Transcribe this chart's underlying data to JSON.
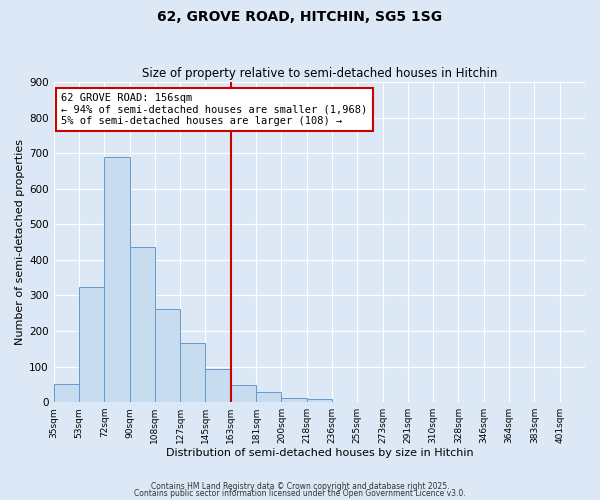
{
  "title": "62, GROVE ROAD, HITCHIN, SG5 1SG",
  "subtitle": "Size of property relative to semi-detached houses in Hitchin",
  "xlabel": "Distribution of semi-detached houses by size in Hitchin",
  "ylabel": "Number of semi-detached properties",
  "bin_labels": [
    "35sqm",
    "53sqm",
    "72sqm",
    "90sqm",
    "108sqm",
    "127sqm",
    "145sqm",
    "163sqm",
    "181sqm",
    "200sqm",
    "218sqm",
    "236sqm",
    "255sqm",
    "273sqm",
    "291sqm",
    "310sqm",
    "328sqm",
    "346sqm",
    "364sqm",
    "383sqm",
    "401sqm"
  ],
  "bar_values": [
    50,
    325,
    690,
    435,
    263,
    167,
    93,
    47,
    28,
    12,
    8,
    0,
    0,
    0,
    0,
    0,
    0,
    0,
    0,
    0,
    0
  ],
  "bar_color": "#c8dcf0",
  "bar_edge_color": "#6699cc",
  "vline_x": 7,
  "vline_color": "#cc0000",
  "annotation_text": "62 GROVE ROAD: 156sqm\n← 94% of semi-detached houses are smaller (1,968)\n5% of semi-detached houses are larger (108) →",
  "annotation_box_color": "#ffffff",
  "annotation_box_edge_color": "#cc0000",
  "ylim": [
    0,
    900
  ],
  "yticks": [
    0,
    100,
    200,
    300,
    400,
    500,
    600,
    700,
    800,
    900
  ],
  "bg_color": "#dce8f5",
  "grid_color": "#ffffff",
  "footnote1": "Contains HM Land Registry data © Crown copyright and database right 2025.",
  "footnote2": "Contains public sector information licensed under the Open Government Licence v3.0."
}
